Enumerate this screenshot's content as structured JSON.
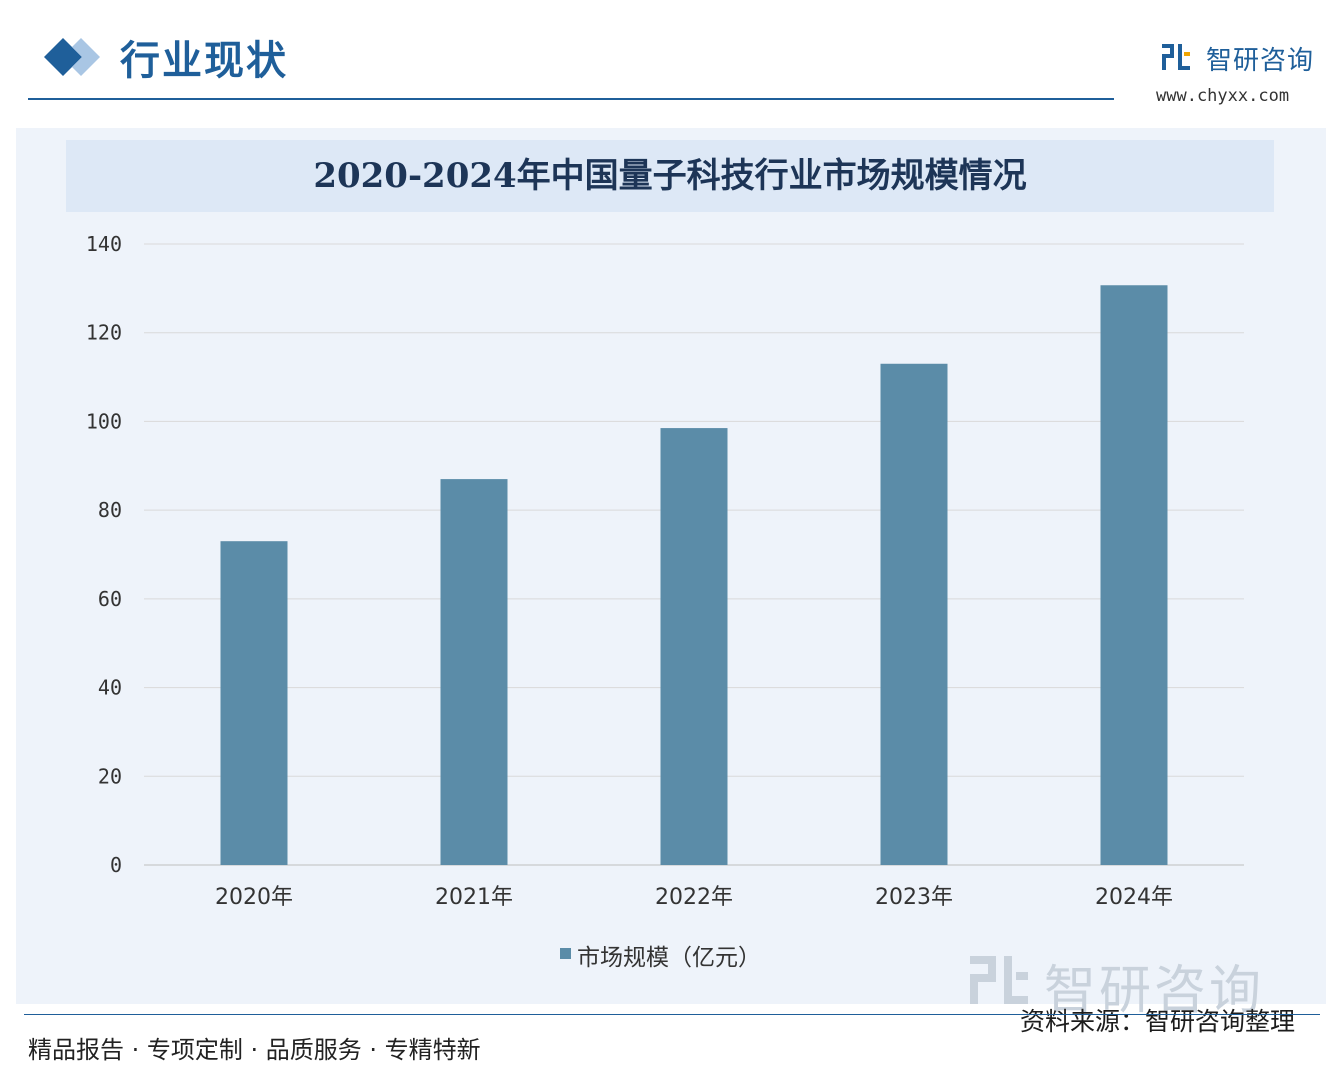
{
  "header": {
    "section_title": "行业现状",
    "brand_name": "智研咨询",
    "brand_url": "www.chyxx.com"
  },
  "chart_data": {
    "type": "bar",
    "title": "2020-2024年中国量子科技行业市场规模情况",
    "categories": [
      "2020年",
      "2021年",
      "2022年",
      "2023年",
      "2024年"
    ],
    "series": [
      {
        "name": "市场规模（亿元）",
        "values": [
          73,
          87,
          98.5,
          113,
          130.7
        ]
      }
    ],
    "ylim": [
      0,
      140
    ],
    "yticks": [
      0,
      20,
      40,
      60,
      80,
      100,
      120,
      140
    ],
    "grid": true,
    "legend": "bottom",
    "colors": {
      "bar": "#5b8ca8",
      "grid": "#d9d9d9",
      "axis": "#bfbfbf"
    }
  },
  "footer": {
    "watermark_name": "智研咨询",
    "source_note": "资料来源：智研咨询整理",
    "slogan": "精品报告 · 专项定制 · 品质服务 · 专精特新"
  },
  "colors": {
    "accent": "#1f5f9a",
    "panel": "#eef3fa",
    "title_band": "#dde8f6"
  }
}
